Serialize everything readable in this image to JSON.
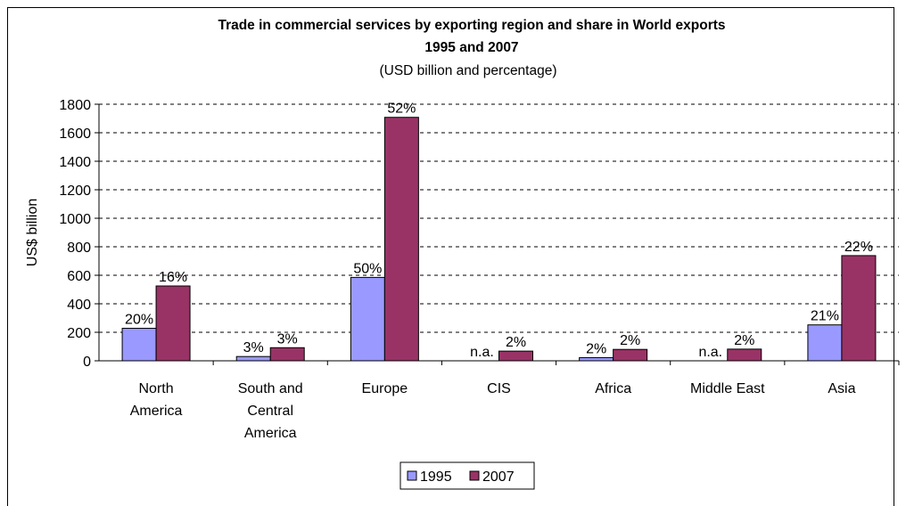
{
  "chart_data": {
    "type": "bar",
    "title": "Trade in commercial services by exporting region and share in World exports",
    "title_line2": "1995 and 2007",
    "subtitle": "(USD billion and percentage)",
    "ylabel": "US$ billion",
    "xlabel": "",
    "ylim": [
      0,
      1800
    ],
    "yticks": [
      0,
      200,
      400,
      600,
      800,
      1000,
      1200,
      1400,
      1600,
      1800
    ],
    "grid": true,
    "legend_position": "bottom",
    "categories": [
      [
        "North",
        "America"
      ],
      [
        "South and",
        "Central",
        "America"
      ],
      [
        "Europe"
      ],
      [
        "CIS"
      ],
      [
        "Africa"
      ],
      [
        "Middle East"
      ],
      [
        "Asia"
      ]
    ],
    "series": [
      {
        "name": "1995",
        "color": "#9999ff",
        "values": [
          228,
          30,
          585,
          0,
          22,
          0,
          252
        ],
        "labels": [
          "20%",
          "3%",
          "50%",
          "n.a.",
          "2%",
          "n.a.",
          "21%"
        ]
      },
      {
        "name": "2007",
        "color": "#993366",
        "values": [
          525,
          92,
          1708,
          68,
          80,
          82,
          738
        ],
        "labels": [
          "16%",
          "3%",
          "52%",
          "2%",
          "2%",
          "2%",
          "22%"
        ]
      }
    ]
  }
}
